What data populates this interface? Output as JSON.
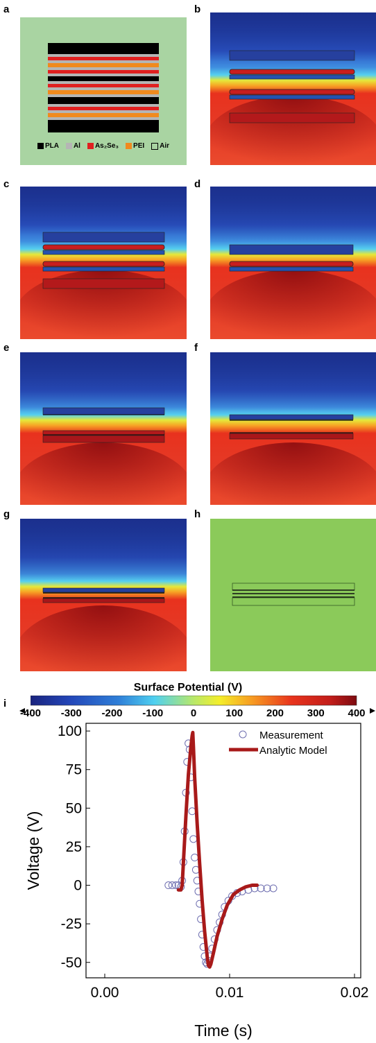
{
  "panels": {
    "a": {
      "label": "a",
      "legend": [
        {
          "name": "PLA",
          "color": "#000000",
          "outline": false
        },
        {
          "name": "Al",
          "color": "#b5b5b5",
          "outline": false
        },
        {
          "name": "As₂Se₃",
          "color": "#e02020",
          "outline": false
        },
        {
          "name": "PEI",
          "color": "#f08a1e",
          "outline": false
        },
        {
          "name": "Air",
          "color": "#a9d4a2",
          "outline": true
        }
      ]
    },
    "b": {
      "label": "b"
    },
    "c": {
      "label": "c"
    },
    "d": {
      "label": "d"
    },
    "e": {
      "label": "e"
    },
    "f": {
      "label": "f"
    },
    "g": {
      "label": "g"
    },
    "h": {
      "label": "h"
    },
    "i": {
      "label": "i"
    }
  },
  "colorbar": {
    "title": "Surface Potential (V)",
    "ticks": [
      "-400",
      "-300",
      "-200",
      "-100",
      "0",
      "100",
      "200",
      "300",
      "400"
    ],
    "min": -400,
    "max": 400
  },
  "chart_data": {
    "type": "scatter",
    "xlabel": "Time (s)",
    "ylabel": "Voltage (V)",
    "xlim": [
      -0.0015,
      0.0205
    ],
    "ylim": [
      -60,
      105
    ],
    "xticks": [
      "0.00",
      "0.01",
      "0.02"
    ],
    "xtick_values": [
      0.0,
      0.01,
      0.02
    ],
    "yticks": [
      "100",
      "75",
      "50",
      "25",
      "0",
      "-25",
      "-50"
    ],
    "ytick_values": [
      100,
      75,
      50,
      25,
      0,
      -25,
      -50
    ],
    "series": [
      {
        "name": "Measurement",
        "style": "open-circle",
        "color": "#6f6fb0",
        "x": [
          0.0051,
          0.0054,
          0.0057,
          0.0059,
          0.0061,
          0.0062,
          0.0063,
          0.0064,
          0.0065,
          0.0066,
          0.0067,
          0.0068,
          0.0069,
          0.007,
          0.0071,
          0.0072,
          0.0073,
          0.0074,
          0.0075,
          0.0076,
          0.0077,
          0.0078,
          0.0079,
          0.008,
          0.0081,
          0.0082,
          0.0083,
          0.0084,
          0.0086,
          0.0088,
          0.009,
          0.0092,
          0.0094,
          0.0096,
          0.0099,
          0.0102,
          0.0106,
          0.011,
          0.0115,
          0.012,
          0.0125,
          0.013,
          0.0135
        ],
        "y": [
          0,
          0,
          0,
          0,
          -1,
          3,
          15,
          35,
          60,
          80,
          92,
          88,
          70,
          48,
          30,
          18,
          10,
          3,
          -4,
          -12,
          -22,
          -32,
          -40,
          -46,
          -50,
          -51,
          -49,
          -46,
          -41,
          -35,
          -29,
          -24,
          -19,
          -14,
          -10,
          -7,
          -5,
          -4,
          -3,
          -2,
          -2,
          -2,
          -2
        ]
      },
      {
        "name": "Analytic Model",
        "style": "line",
        "color": "#a81a1a",
        "x": [
          0.0059,
          0.0061,
          0.0062,
          0.0063,
          0.0065,
          0.0067,
          0.0069,
          0.007,
          0.00705,
          0.0071,
          0.0072,
          0.0074,
          0.0076,
          0.0078,
          0.008,
          0.0082,
          0.0083,
          0.0084,
          0.0085,
          0.0087,
          0.009,
          0.0094,
          0.0098,
          0.0103,
          0.0108,
          0.0113,
          0.0118,
          0.0122
        ],
        "y": [
          -3,
          -3,
          0,
          15,
          45,
          72,
          90,
          97,
          99,
          90,
          70,
          40,
          14,
          -10,
          -30,
          -46,
          -52,
          -53,
          -51,
          -44,
          -33,
          -22,
          -13,
          -6,
          -3,
          -1,
          0,
          0
        ]
      }
    ],
    "legend_position": "top-right"
  }
}
